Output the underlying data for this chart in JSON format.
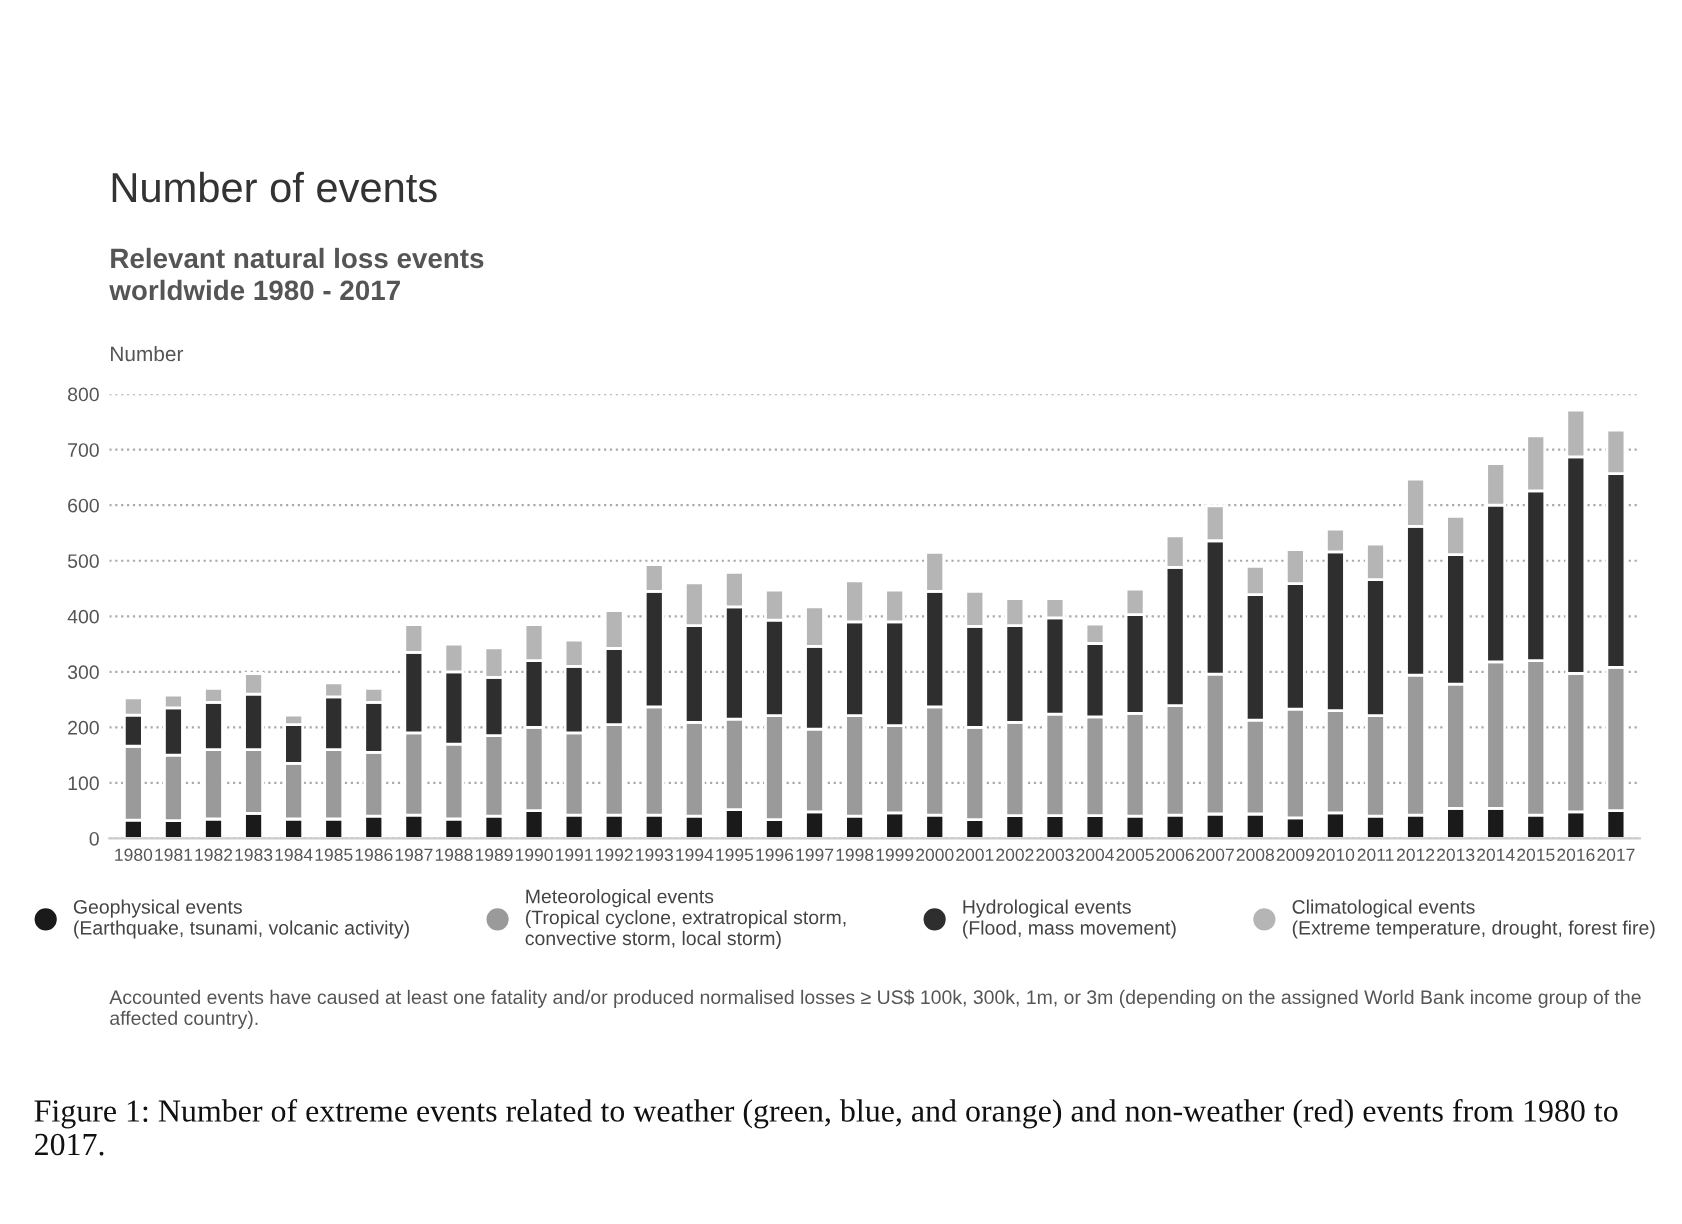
{
  "chart_data": {
    "type": "bar",
    "stacked": true,
    "title": "Number of events",
    "subtitle": "Relevant natural loss events\nworldwide 1980 - 2017",
    "ylabel": "Number",
    "categories": [
      "1980",
      "1981",
      "1982",
      "1983",
      "1984",
      "1985",
      "1986",
      "1987",
      "1988",
      "1989",
      "1990",
      "1991",
      "1992",
      "1993",
      "1994",
      "1995",
      "1996",
      "1997",
      "1998",
      "1999",
      "2000",
      "2001",
      "2002",
      "2003",
      "2004",
      "2005",
      "2006",
      "2007",
      "2008",
      "2009",
      "2010",
      "2011",
      "2012",
      "2013",
      "2014",
      "2015",
      "2016",
      "2017"
    ],
    "series": [
      {
        "name": "Geophysical events\n(Earthquake, tsunami, volcanic activity)",
        "color": "#1a1a1a",
        "values": [
          33,
          32,
          35,
          45,
          35,
          35,
          40,
          42,
          35,
          40,
          50,
          42,
          42,
          42,
          40,
          52,
          34,
          48,
          40,
          46,
          42,
          34,
          41,
          41,
          41,
          40,
          42,
          44,
          44,
          37,
          46,
          40,
          42,
          54,
          54,
          42,
          48,
          50
        ]
      },
      {
        "name": "Meteorological events\n(Tropical cyclone, extratropical storm,\nconvective storm, local storm)",
        "color": "#9a9a9a",
        "values": [
          133,
          118,
          125,
          115,
          100,
          125,
          115,
          148,
          135,
          145,
          150,
          148,
          163,
          195,
          169,
          163,
          187,
          149,
          181,
          157,
          195,
          166,
          168,
          183,
          178,
          185,
          197,
          252,
          169,
          196,
          184,
          181,
          252,
          224,
          264,
          278,
          249,
          258
        ]
      },
      {
        "name": "Hydrological events\n(Flood, mass movement)",
        "color": "#2e2e2e",
        "values": [
          56,
          85,
          85,
          100,
          70,
          95,
          90,
          145,
          130,
          105,
          120,
          120,
          137,
          208,
          174,
          202,
          172,
          149,
          169,
          187,
          208,
          182,
          174,
          173,
          132,
          178,
          249,
          240,
          226,
          226,
          286,
          245,
          268,
          233,
          282,
          306,
          390,
          349
        ]
      },
      {
        "name": "Climatological events\n(Extreme temperature, drought, forest fire)",
        "color": "#b5b5b5",
        "values": [
          31,
          23,
          25,
          37,
          17,
          25,
          25,
          50,
          50,
          53,
          65,
          47,
          68,
          48,
          77,
          62,
          54,
          71,
          74,
          57,
          70,
          63,
          49,
          35,
          35,
          46,
          57,
          63,
          51,
          61,
          41,
          64,
          85,
          69,
          75,
          99,
          84,
          78
        ]
      }
    ],
    "ylim": [
      0,
      800
    ],
    "yticks": [
      0,
      100,
      200,
      300,
      400,
      500,
      600,
      700,
      800
    ],
    "grid": "y",
    "legend": "bottom",
    "marker": "circle",
    "annotations": [
      "Accounted events have caused at least one fatality and/or produced normalised losses ≥ US$ 100k, 300k, 1m, or 3m (depending on the assigned World Bank income group of the affected country).",
      "Figure 1: Number of extreme events related to weather (green, blue, and orange) and non-weather (red) events from 1980 to 2017."
    ]
  }
}
